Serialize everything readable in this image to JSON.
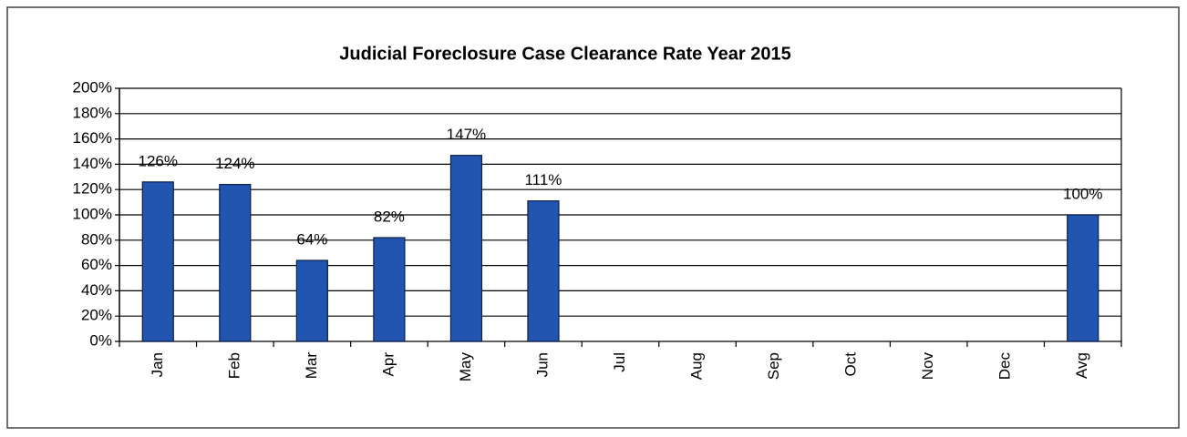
{
  "chart_data": {
    "type": "bar",
    "title": "Judicial Foreclosure Case Clearance Rate Year 2015",
    "categories": [
      "Jan",
      "Feb",
      "Mar",
      "Apr",
      "May",
      "Jun",
      "Jul",
      "Aug",
      "Sep",
      "Oct",
      "Nov",
      "Dec",
      "Avg"
    ],
    "values": [
      126,
      124,
      64,
      82,
      147,
      111,
      null,
      null,
      null,
      null,
      null,
      null,
      100
    ],
    "value_labels": [
      "126%",
      "124%",
      "64%",
      "82%",
      "147%",
      "111%",
      null,
      null,
      null,
      null,
      null,
      null,
      "100%"
    ],
    "color": "#2255b0",
    "ylim": [
      0,
      200
    ],
    "yticks": [
      {
        "value": 0,
        "label": "0%"
      },
      {
        "value": 20,
        "label": "20%"
      },
      {
        "value": 40,
        "label": "40%"
      },
      {
        "value": 60,
        "label": "60%"
      },
      {
        "value": 80,
        "label": "80%"
      },
      {
        "value": 100,
        "label": "100%"
      },
      {
        "value": 120,
        "label": "120%"
      },
      {
        "value": 140,
        "label": "140%"
      },
      {
        "value": 160,
        "label": "160%"
      },
      {
        "value": 180,
        "label": "180%"
      },
      {
        "value": 200,
        "label": "200%"
      }
    ],
    "grid": true
  }
}
